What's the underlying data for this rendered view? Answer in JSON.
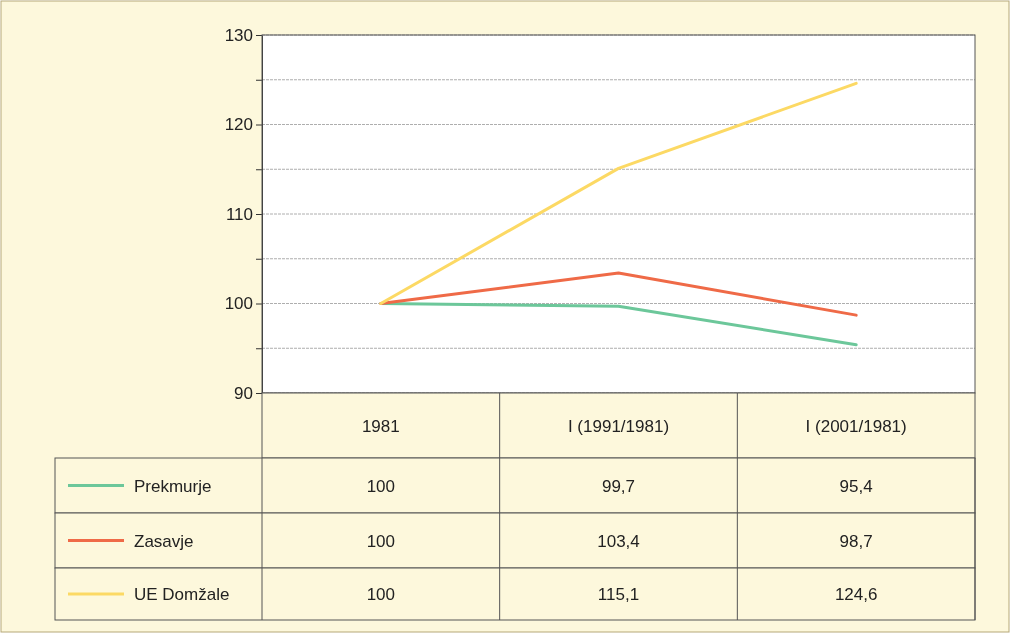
{
  "chart_data": {
    "type": "line",
    "categories": [
      "1981",
      "I (1991/1981)",
      "I (2001/1981)"
    ],
    "series": [
      {
        "name": "Prekmurje",
        "color": "#6cc79a",
        "values": [
          100,
          99.7,
          95.4
        ],
        "value_labels": [
          "100",
          "99,7",
          "95,4"
        ]
      },
      {
        "name": "Zasavje",
        "color": "#ef6a47",
        "values": [
          100,
          103.4,
          98.7
        ],
        "value_labels": [
          "100",
          "103,4",
          "98,7"
        ]
      },
      {
        "name": "UE Domžale",
        "color": "#fcd964",
        "values": [
          100,
          115.1,
          124.6
        ],
        "value_labels": [
          "100",
          "115,1",
          "124,6"
        ]
      }
    ],
    "ylim": [
      90,
      130
    ],
    "yticks": [
      90,
      {
        "value": 95,
        "label": null
      },
      100,
      {
        "value": 105,
        "label": null
      },
      110,
      {
        "value": 115,
        "label": null
      },
      120,
      {
        "value": 125,
        "label": null
      },
      130
    ],
    "grid": "y",
    "legend": "bottom left",
    "marker": "none",
    "line_style": "solid"
  }
}
